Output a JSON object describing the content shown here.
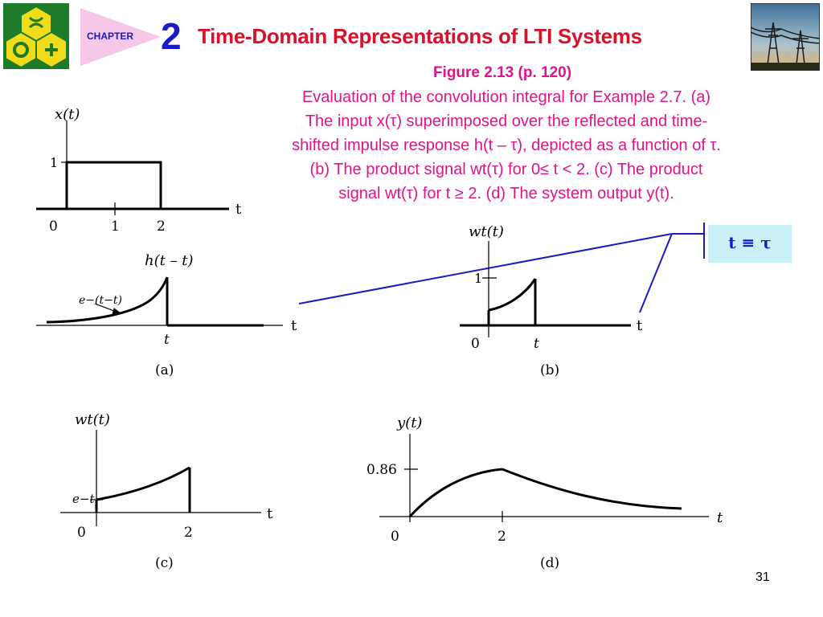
{
  "header": {
    "chapter_label": "CHAPTER",
    "chapter_number": "2",
    "title": "Time-Domain Representations of LTI Systems"
  },
  "figure": {
    "title": "Figure 2.13  (p. 120)",
    "caption_lines": [
      "Evaluation of the convolution integral for Example 2.7.  (a)",
      "The input x(τ) superimposed over the reflected and time-",
      "shifted impulse response h(t – τ), depicted as a function of τ.",
      "(b) The product signal wt(τ) for 0≤  t < 2.  (c) The product",
      "signal wt(τ) for t ≥ 2.  (d) The system output y(t)."
    ]
  },
  "callout": {
    "text": "t ≡ τ"
  },
  "panels": {
    "a_top": {
      "ylabel": "x(t)",
      "xlabel": "t",
      "tick_y": "1",
      "ticks_x": [
        "0",
        "1",
        "2"
      ]
    },
    "a_bottom": {
      "ylabel": "h(t – t)",
      "annotation": "e−(t−t)",
      "xlabel": "t",
      "tick_x": "t",
      "caption": "(a)"
    },
    "b": {
      "ylabel": "wt(t)",
      "tick_y": "1",
      "ticks_x": [
        "0",
        "t"
      ],
      "xlabel": "t",
      "caption": "(b)"
    },
    "c": {
      "ylabel": "wt(t)",
      "tick_y": "e−t",
      "ticks_x": [
        "0",
        "2"
      ],
      "xlabel": "t",
      "caption": "(c)"
    },
    "d": {
      "ylabel": "y(t)",
      "tick_y": "0.86",
      "ticks_x": [
        "0",
        "2"
      ],
      "xlabel": "t",
      "caption": "(d)"
    }
  },
  "page_number": "31",
  "colors": {
    "title": "#d8102a",
    "caption": "#e0148a",
    "chapter": "#1a1ac8",
    "callout_bg": "#c9f0f6",
    "line": "#1a1ac8"
  }
}
